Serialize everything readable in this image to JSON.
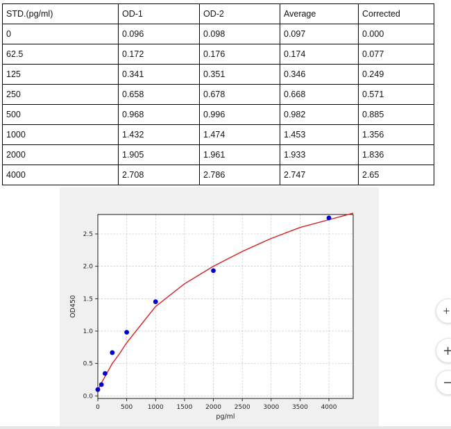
{
  "table": {
    "headers": [
      "STD.(pg/ml)",
      "OD-1",
      "OD-2",
      "Average",
      "Corrected"
    ],
    "rows": [
      [
        "0",
        "0.096",
        "0.098",
        "0.097",
        "0.000"
      ],
      [
        "62.5",
        "0.172",
        "0.176",
        "0.174",
        "0.077"
      ],
      [
        "125",
        "0.341",
        "0.351",
        "0.346",
        "0.249"
      ],
      [
        "250",
        "0.658",
        "0.678",
        "0.668",
        "0.571"
      ],
      [
        "500",
        "0.968",
        "0.996",
        "0.982",
        "0.885"
      ],
      [
        "1000",
        "1.432",
        "1.474",
        "1.453",
        "1.356"
      ],
      [
        "2000",
        "1.905",
        "1.961",
        "1.933",
        "1.836"
      ],
      [
        "4000",
        "2.708",
        "2.786",
        "2.747",
        "2.65"
      ]
    ]
  },
  "chart_data": {
    "type": "scatter",
    "xlabel": "pg/ml",
    "ylabel": "OD450",
    "xlim": [
      0,
      4420
    ],
    "ylim": [
      -0.04,
      2.8
    ],
    "x_ticks": [
      0,
      500,
      1000,
      1500,
      2000,
      2500,
      3000,
      3500,
      4000
    ],
    "y_ticks": [
      0.0,
      0.5,
      1.0,
      1.5,
      2.0,
      2.5
    ],
    "x_tick_labels": [
      "0",
      "500",
      "1000",
      "1500",
      "2000",
      "2500",
      "3000",
      "3500",
      "4000"
    ],
    "y_tick_labels": [
      "0.0",
      "0.5",
      "1.0",
      "1.5",
      "2.0",
      "2.5"
    ],
    "grid": true,
    "points": {
      "x": [
        0,
        62.5,
        125,
        250,
        500,
        1000,
        2000,
        4000
      ],
      "y": [
        0.097,
        0.174,
        0.346,
        0.668,
        0.982,
        1.453,
        1.933,
        2.747
      ],
      "color": "#0000cc"
    },
    "fit_curve": {
      "color": "#d62020",
      "x": [
        0,
        25,
        62.5,
        125,
        250,
        375,
        500,
        750,
        1000,
        1500,
        2000,
        2500,
        3000,
        3500,
        4000,
        4420
      ],
      "y": [
        0.08,
        0.13,
        0.2,
        0.3,
        0.5,
        0.65,
        0.82,
        1.1,
        1.38,
        1.73,
        2.0,
        2.23,
        2.43,
        2.6,
        2.72,
        2.82
      ]
    }
  },
  "zoom_controls": {
    "fit_symbol": "+",
    "zoom_in_symbol": "+",
    "zoom_out_symbol": "−"
  }
}
